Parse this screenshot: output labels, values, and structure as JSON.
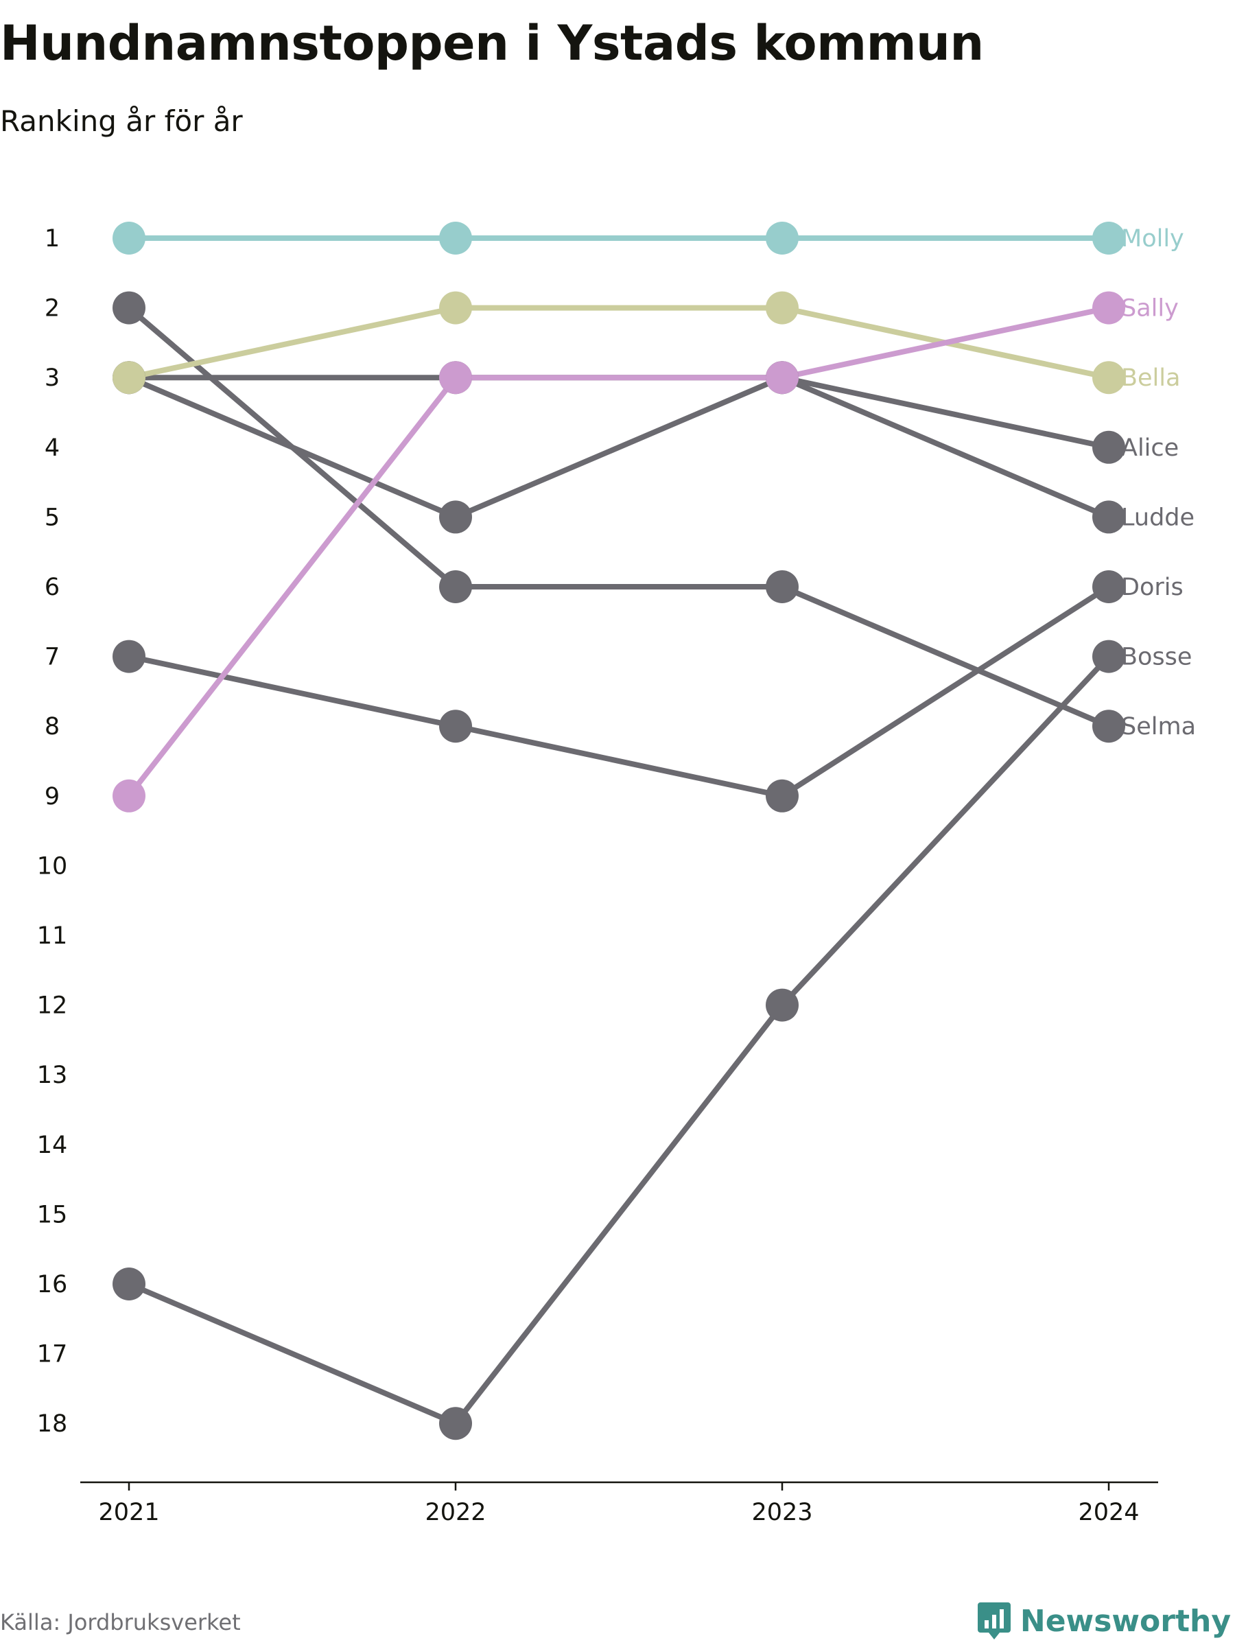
{
  "title": "Hundnamnstoppen i Ystads kommun",
  "subtitle": "Ranking år för år",
  "source": "Källa: Jordbruksverket",
  "brand": "Newsworthy",
  "brand_icon": "bar-chart-speech-bubble-icon",
  "colors": {
    "molly": "#97cdcc",
    "bella": "#cbcd9d",
    "sally": "#cc9bcf",
    "gray": "#6b6a70",
    "brand": "#3a8f88"
  },
  "chart_data": {
    "type": "line",
    "subtype": "bump",
    "x": [
      "2021",
      "2022",
      "2023",
      "2024"
    ],
    "y_ticks": [
      "1",
      "2",
      "3",
      "4",
      "5",
      "6",
      "7",
      "8",
      "9",
      "10",
      "11",
      "12",
      "13",
      "14",
      "15",
      "16",
      "17",
      "18"
    ],
    "ylim": [
      1,
      18
    ],
    "y_inverted": true,
    "grid": false,
    "series": [
      {
        "name": "Selma",
        "values": [
          2,
          6,
          6,
          8
        ],
        "color": "#6b6a70"
      },
      {
        "name": "Bosse",
        "values": [
          16,
          18,
          12,
          7
        ],
        "color": "#6b6a70"
      },
      {
        "name": "Doris",
        "values": [
          7,
          8,
          9,
          6
        ],
        "color": "#6b6a70"
      },
      {
        "name": "Ludde",
        "values": [
          3,
          3,
          3,
          5
        ],
        "color": "#6b6a70"
      },
      {
        "name": "Alice",
        "values": [
          3,
          5,
          3,
          4
        ],
        "color": "#6b6a70"
      },
      {
        "name": "Bella",
        "values": [
          3,
          2,
          2,
          3
        ],
        "color": "#cbcd9d"
      },
      {
        "name": "Sally",
        "values": [
          9,
          3,
          3,
          2
        ],
        "color": "#cc9bcf"
      },
      {
        "name": "Molly",
        "values": [
          1,
          1,
          1,
          1
        ],
        "color": "#97cdcc"
      }
    ]
  }
}
